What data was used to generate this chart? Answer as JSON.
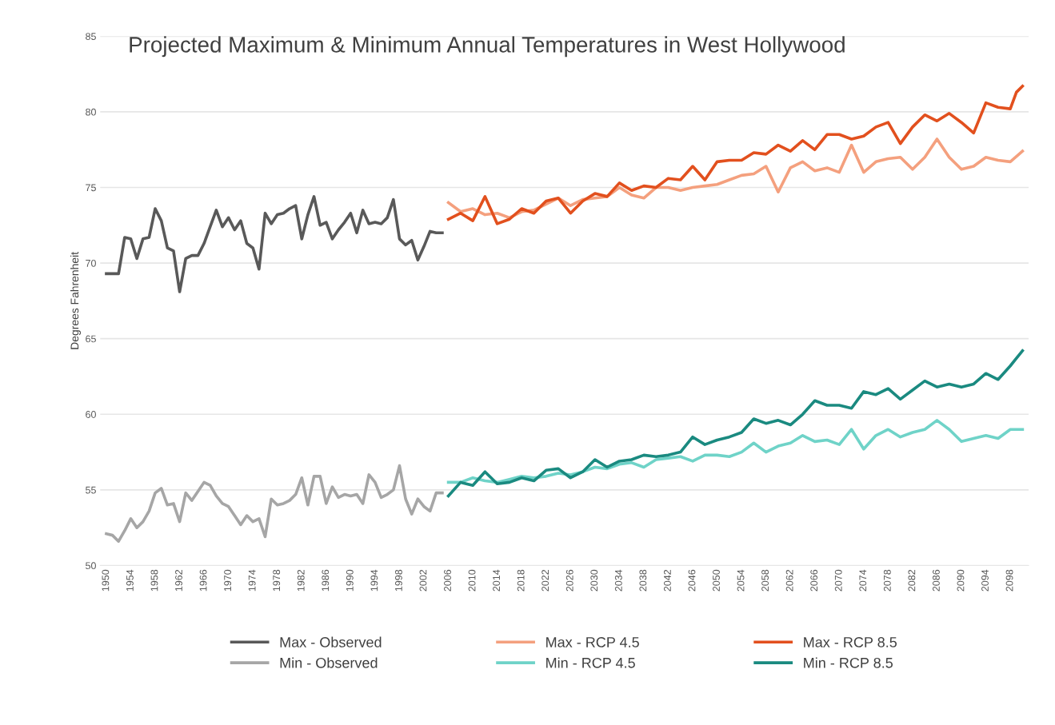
{
  "chart_data": {
    "type": "line",
    "title": "Projected Maximum & Minimum Annual Temperatures in West Hollywood",
    "ylabel": "Degrees Fahrenheit",
    "xlim": [
      1949,
      2101
    ],
    "xticks": [
      1950,
      1954,
      1958,
      1962,
      1966,
      1970,
      1974,
      1978,
      1982,
      1986,
      1990,
      1994,
      1998,
      2002,
      2006,
      2010,
      2014,
      2018,
      2022,
      2026,
      2030,
      2034,
      2038,
      2042,
      2046,
      2050,
      2054,
      2058,
      2062,
      2066,
      2070,
      2074,
      2078,
      2082,
      2086,
      2090,
      2094,
      2098
    ],
    "ylim": [
      50,
      85
    ],
    "yticks": [
      50,
      55,
      60,
      65,
      70,
      75,
      80,
      85
    ],
    "grid": "y",
    "legend": "bottom",
    "marker": "none",
    "line_style": "solid",
    "series": [
      {
        "name": "Max - Observed",
        "color": "#595959",
        "x": [
          1950,
          1951,
          1952,
          1953,
          1954,
          1955,
          1956,
          1957,
          1958,
          1959,
          1960,
          1961,
          1962,
          1963,
          1964,
          1965,
          1966,
          1967,
          1968,
          1969,
          1970,
          1971,
          1972,
          1973,
          1974,
          1975,
          1976,
          1977,
          1978,
          1979,
          1980,
          1981,
          1982,
          1983,
          1984,
          1985,
          1986,
          1987,
          1988,
          1989,
          1990,
          1991,
          1992,
          1993,
          1994,
          1995,
          1996,
          1997,
          1998,
          1999,
          2000,
          2001,
          2002,
          2003,
          2004,
          2005
        ],
        "values": [
          69.3,
          69.3,
          69.3,
          71.7,
          71.6,
          70.3,
          71.6,
          71.7,
          73.6,
          72.8,
          71.0,
          70.8,
          68.1,
          70.3,
          70.5,
          70.5,
          71.3,
          72.4,
          73.5,
          72.4,
          73.0,
          72.2,
          72.8,
          71.3,
          71.0,
          69.6,
          73.3,
          72.6,
          73.2,
          73.3,
          73.6,
          73.8,
          71.6,
          73.2,
          74.4,
          72.5,
          72.7,
          71.6,
          72.2,
          72.7,
          73.3,
          72.0,
          73.5,
          72.6,
          72.7,
          72.6,
          73.0,
          74.2,
          71.6,
          71.2,
          71.5,
          70.2,
          71.1,
          72.1,
          72.0,
          72.0
        ]
      },
      {
        "name": "Min - Observed",
        "color": "#a6a6a6",
        "x": [
          1950,
          1951,
          1952,
          1953,
          1954,
          1955,
          1956,
          1957,
          1958,
          1959,
          1960,
          1961,
          1962,
          1963,
          1964,
          1965,
          1966,
          1967,
          1968,
          1969,
          1970,
          1971,
          1972,
          1973,
          1974,
          1975,
          1976,
          1977,
          1978,
          1979,
          1980,
          1981,
          1982,
          1983,
          1984,
          1985,
          1986,
          1987,
          1988,
          1989,
          1990,
          1991,
          1992,
          1993,
          1994,
          1995,
          1996,
          1997,
          1998,
          1999,
          2000,
          2001,
          2002,
          2003,
          2004,
          2005
        ],
        "values": [
          52.1,
          52.0,
          51.6,
          52.3,
          53.1,
          52.5,
          52.9,
          53.6,
          54.8,
          55.1,
          54.0,
          54.1,
          52.9,
          54.8,
          54.3,
          54.9,
          55.5,
          55.3,
          54.6,
          54.1,
          53.9,
          53.3,
          52.7,
          53.3,
          52.9,
          53.1,
          51.9,
          54.4,
          54.0,
          54.1,
          54.3,
          54.7,
          55.8,
          54.0,
          55.9,
          55.9,
          54.1,
          55.2,
          54.5,
          54.7,
          54.6,
          54.7,
          54.1,
          56.0,
          55.5,
          54.5,
          54.7,
          55.0,
          56.6,
          54.4,
          53.4,
          54.4,
          53.9,
          53.6,
          54.8,
          54.8
        ]
      },
      {
        "name": "Max - RCP 4.5",
        "color": "#f4a07e",
        "x": [
          2006,
          2008,
          2010,
          2012,
          2014,
          2016,
          2018,
          2020,
          2022,
          2024,
          2026,
          2028,
          2030,
          2032,
          2034,
          2036,
          2038,
          2040,
          2042,
          2044,
          2046,
          2048,
          2050,
          2052,
          2054,
          2056,
          2058,
          2060,
          2062,
          2064,
          2066,
          2068,
          2070,
          2072,
          2074,
          2076,
          2078,
          2080,
          2082,
          2084,
          2086,
          2088,
          2090,
          2092,
          2094,
          2096,
          2098,
          2100
        ],
        "values": [
          74.0,
          73.4,
          73.6,
          73.2,
          73.3,
          73.0,
          73.4,
          73.5,
          73.9,
          74.3,
          73.8,
          74.2,
          74.3,
          74.4,
          75.0,
          74.5,
          74.3,
          75.0,
          75.0,
          74.8,
          75.0,
          75.1,
          75.2,
          75.5,
          75.8,
          75.9,
          76.4,
          74.7,
          76.3,
          76.7,
          76.1,
          76.3,
          76.0,
          77.8,
          76.0,
          76.7,
          76.9,
          77.0,
          76.2,
          77.0,
          78.2,
          77.0,
          76.2,
          76.4,
          77.0,
          76.8,
          76.7,
          77.4
        ]
      },
      {
        "name": "Min - RCP 4.5",
        "color": "#6fd3c8",
        "x": [
          2006,
          2008,
          2010,
          2012,
          2014,
          2016,
          2018,
          2020,
          2022,
          2024,
          2026,
          2028,
          2030,
          2032,
          2034,
          2036,
          2038,
          2040,
          2042,
          2044,
          2046,
          2048,
          2050,
          2052,
          2054,
          2056,
          2058,
          2060,
          2062,
          2064,
          2066,
          2068,
          2070,
          2072,
          2074,
          2076,
          2078,
          2080,
          2082,
          2084,
          2086,
          2088,
          2090,
          2092,
          2094,
          2096,
          2098,
          2100
        ],
        "values": [
          55.5,
          55.5,
          55.8,
          55.6,
          55.5,
          55.7,
          55.9,
          55.8,
          55.9,
          56.1,
          56.0,
          56.2,
          56.5,
          56.4,
          56.7,
          56.8,
          56.5,
          57.0,
          57.1,
          57.2,
          56.9,
          57.3,
          57.3,
          57.2,
          57.5,
          58.1,
          57.5,
          57.9,
          58.1,
          58.6,
          58.2,
          58.3,
          58.0,
          59.0,
          57.7,
          58.6,
          59.0,
          58.5,
          58.8,
          59.0,
          59.6,
          59.0,
          58.2,
          58.4,
          58.6,
          58.4,
          59.0,
          59.0
        ]
      },
      {
        "name": "Max - RCP 8.5",
        "color": "#e2501e",
        "x": [
          2006,
          2008,
          2010,
          2012,
          2014,
          2016,
          2018,
          2020,
          2022,
          2024,
          2026,
          2028,
          2030,
          2032,
          2034,
          2036,
          2038,
          2040,
          2042,
          2044,
          2046,
          2048,
          2050,
          2052,
          2054,
          2056,
          2058,
          2060,
          2062,
          2064,
          2066,
          2068,
          2070,
          2072,
          2074,
          2076,
          2078,
          2080,
          2082,
          2084,
          2086,
          2088,
          2090,
          2092,
          2094,
          2096,
          2098,
          2099,
          2100
        ],
        "values": [
          72.9,
          73.3,
          72.8,
          74.4,
          72.6,
          72.9,
          73.6,
          73.3,
          74.1,
          74.3,
          73.3,
          74.1,
          74.6,
          74.4,
          75.3,
          74.8,
          75.1,
          75.0,
          75.6,
          75.5,
          76.4,
          75.5,
          76.7,
          76.8,
          76.8,
          77.3,
          77.2,
          77.8,
          77.4,
          78.1,
          77.5,
          78.5,
          78.5,
          78.2,
          78.4,
          79.0,
          79.3,
          77.9,
          79.0,
          79.8,
          79.4,
          79.9,
          79.3,
          78.6,
          80.6,
          80.3,
          80.2,
          81.3,
          81.7
        ]
      },
      {
        "name": "Min - RCP 8.5",
        "color": "#1a8a80",
        "x": [
          2006,
          2008,
          2010,
          2012,
          2014,
          2016,
          2018,
          2020,
          2022,
          2024,
          2026,
          2028,
          2030,
          2032,
          2034,
          2036,
          2038,
          2040,
          2042,
          2044,
          2046,
          2048,
          2050,
          2052,
          2054,
          2056,
          2058,
          2060,
          2062,
          2064,
          2066,
          2068,
          2070,
          2072,
          2074,
          2076,
          2078,
          2080,
          2082,
          2084,
          2086,
          2088,
          2090,
          2092,
          2094,
          2096,
          2098,
          2100
        ],
        "values": [
          54.6,
          55.5,
          55.3,
          56.2,
          55.4,
          55.5,
          55.8,
          55.6,
          56.3,
          56.4,
          55.8,
          56.2,
          57.0,
          56.5,
          56.9,
          57.0,
          57.3,
          57.2,
          57.3,
          57.5,
          58.5,
          58.0,
          58.3,
          58.5,
          58.8,
          59.7,
          59.4,
          59.6,
          59.3,
          60.0,
          60.9,
          60.6,
          60.6,
          60.4,
          61.5,
          61.3,
          61.7,
          61.0,
          61.6,
          62.2,
          61.8,
          62.0,
          61.8,
          62.0,
          62.7,
          62.3,
          63.2,
          64.2
        ]
      }
    ]
  }
}
